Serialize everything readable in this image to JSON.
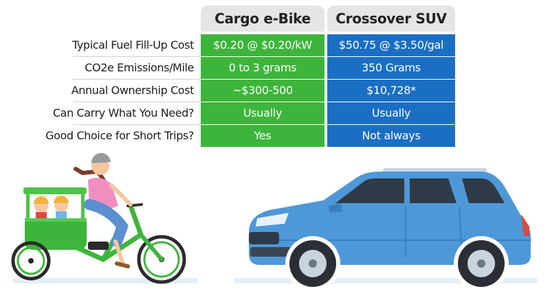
{
  "table": {
    "columns": [
      "Cargo e-Bike",
      "Crossover SUV"
    ],
    "rows": [
      {
        "label": "Typical Fuel Fill-Up Cost",
        "bike": "$0.20 @ $0.20/kW",
        "suv": "$50.75 @ $3.50/gal"
      },
      {
        "label": "CO2e Emissions/Mile",
        "bike": "0 to 3 grams",
        "suv": "350 Grams"
      },
      {
        "label": "Annual Ownership Cost",
        "bike": "~$300-500",
        "suv": "$10,728*"
      },
      {
        "label": "Can Carry What You Need?",
        "bike": "Usually",
        "suv": "Usually"
      },
      {
        "label": "Good Choice for Short Trips?",
        "bike": "Yes",
        "suv": "Not always"
      }
    ]
  },
  "colors": {
    "bike_green": "#3db53b",
    "suv_blue": "#1a6fc4",
    "header_gray": "#e5e5e5"
  },
  "illustrations": {
    "left": "cargo-ebike-with-rider-and-children-illustration",
    "right": "blue-crossover-suv-illustration"
  }
}
